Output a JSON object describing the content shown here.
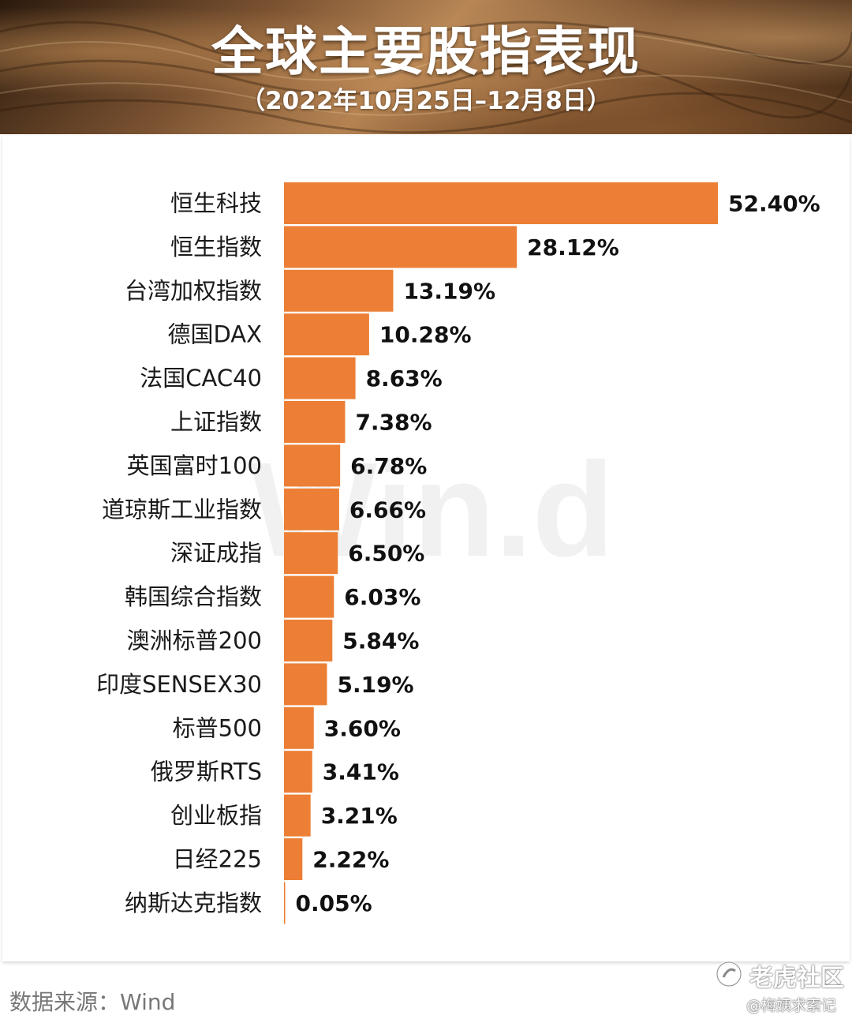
{
  "header": {
    "title": "全球主要股指表现",
    "subtitle": "（2022年10月25日–12月8日）"
  },
  "chart_data": {
    "type": "bar",
    "orientation": "horizontal",
    "categories": [
      "恒生科技",
      "恒生指数",
      "台湾加权指数",
      "德国DAX",
      "法国CAC40",
      "上证指数",
      "英国富时100",
      "道琼斯工业指数",
      "深证成指",
      "韩国综合指数",
      "澳洲标普200",
      "印度SENSEX30",
      "标普500",
      "俄罗斯RTS",
      "创业板指",
      "日经225",
      "纳斯达克指数"
    ],
    "values": [
      52.4,
      28.12,
      13.19,
      10.28,
      8.63,
      7.38,
      6.78,
      6.66,
      6.5,
      6.03,
      5.84,
      5.19,
      3.6,
      3.41,
      3.21,
      2.22,
      0.05
    ],
    "value_labels": [
      "52.40%",
      "28.12%",
      "13.19%",
      "10.28%",
      "8.63%",
      "7.38%",
      "6.78%",
      "6.66%",
      "6.50%",
      "6.03%",
      "5.84%",
      "5.19%",
      "3.60%",
      "3.41%",
      "3.21%",
      "2.22%",
      "0.05%"
    ],
    "xlim": [
      0,
      52.4
    ],
    "bar_color": "#ec7f35",
    "grid": false,
    "legend": "none",
    "xlabel": "",
    "ylabel": ""
  },
  "background_watermark": "Win.d",
  "footer": {
    "source": "数据来源：Wind",
    "watermark_community": "老虎社区",
    "watermark_author": "@梅姨求索记"
  },
  "colors": {
    "bar": "#ec7f35",
    "watermark": "#f1f1f1"
  }
}
